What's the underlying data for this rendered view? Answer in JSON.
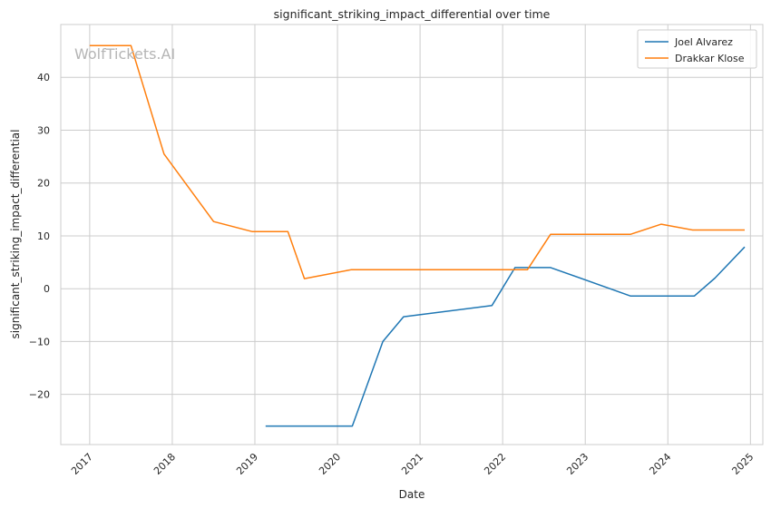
{
  "chart_data": {
    "type": "line",
    "title": "significant_striking_impact_differential over time",
    "xlabel": "Date",
    "ylabel": "significant_striking_impact_differential",
    "watermark": "WolfTickets.AI",
    "x_ticks": [
      "2017",
      "2018",
      "2019",
      "2020",
      "2021",
      "2022",
      "2023",
      "2024",
      "2025"
    ],
    "y_ticks": [
      -20,
      -10,
      0,
      10,
      20,
      30,
      40
    ],
    "xlim": [
      2016.65,
      2025.15
    ],
    "ylim": [
      -29.5,
      50
    ],
    "grid": true,
    "legend_position": "top-right",
    "series": [
      {
        "name": "Joel Alvarez",
        "color": "#1f77b4",
        "points": [
          [
            2019.13,
            -26
          ],
          [
            2020.18,
            -26
          ],
          [
            2020.55,
            -10
          ],
          [
            2020.8,
            -5.3
          ],
          [
            2021.87,
            -3.2
          ],
          [
            2022.15,
            4.0
          ],
          [
            2022.58,
            4.0
          ],
          [
            2023.55,
            -1.4
          ],
          [
            2024.32,
            -1.4
          ],
          [
            2024.57,
            2.0
          ],
          [
            2024.93,
            7.9
          ]
        ]
      },
      {
        "name": "Drakkar Klose",
        "color": "#ff7f0e",
        "points": [
          [
            2017.0,
            46
          ],
          [
            2017.5,
            46
          ],
          [
            2017.9,
            25.5
          ],
          [
            2018.5,
            12.7
          ],
          [
            2018.97,
            10.8
          ],
          [
            2019.4,
            10.8
          ],
          [
            2019.6,
            1.9
          ],
          [
            2020.17,
            3.6
          ],
          [
            2022.3,
            3.6
          ],
          [
            2022.58,
            10.3
          ],
          [
            2023.55,
            10.3
          ],
          [
            2023.92,
            12.2
          ],
          [
            2024.3,
            11.1
          ],
          [
            2024.93,
            11.1
          ]
        ]
      }
    ]
  }
}
